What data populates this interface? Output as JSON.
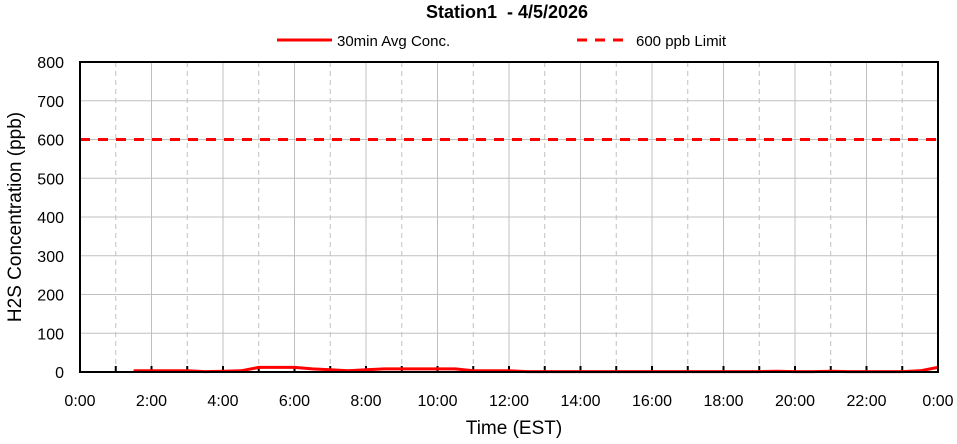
{
  "chart_data": {
    "type": "line",
    "title": "Station1  - 4/5/2026",
    "xlabel": "Time (EST)",
    "ylabel": "H2S Concentration (ppb)",
    "xlim_hours": [
      0,
      24
    ],
    "ylim": [
      0,
      800
    ],
    "y_ticks": [
      "0",
      "100",
      "200",
      "300",
      "400",
      "500",
      "600",
      "700",
      "800"
    ],
    "x_ticks": [
      "0:00",
      "2:00",
      "4:00",
      "6:00",
      "8:00",
      "10:00",
      "12:00",
      "14:00",
      "16:00",
      "18:00",
      "20:00",
      "22:00",
      "0:00"
    ],
    "grid": true,
    "legend_position": "top",
    "series": [
      {
        "name": "30min Avg Conc.",
        "color": "#ff0000",
        "style": "solid",
        "x": [
          "1:30",
          "2:00",
          "2:30",
          "3:00",
          "3:30",
          "4:00",
          "4:30",
          "5:00",
          "5:30",
          "6:00",
          "6:30",
          "7:00",
          "7:30",
          "8:00",
          "8:30",
          "9:00",
          "9:30",
          "10:00",
          "10:30",
          "11:00",
          "11:30",
          "12:00",
          "12:30",
          "13:00",
          "13:30",
          "14:00",
          "14:30",
          "15:00",
          "15:30",
          "16:00",
          "16:30",
          "17:00",
          "17:30",
          "18:00",
          "18:30",
          "19:00",
          "19:30",
          "20:00",
          "20:30",
          "21:00",
          "21:30",
          "22:00",
          "22:30",
          "23:00",
          "23:30",
          "24:00"
        ],
        "values": [
          3,
          3,
          3,
          3,
          1,
          2,
          3,
          12,
          12,
          12,
          8,
          6,
          3,
          6,
          8,
          8,
          8,
          8,
          8,
          3,
          3,
          3,
          1,
          1,
          1,
          1,
          1,
          1,
          1,
          1,
          1,
          1,
          1,
          1,
          1,
          1,
          2,
          1,
          1,
          2,
          1,
          1,
          1,
          1,
          3,
          12
        ]
      },
      {
        "name": "600 ppb Limit",
        "color": "#ff0000",
        "style": "dashed",
        "x": [
          "0:00",
          "24:00"
        ],
        "values": [
          600,
          600
        ]
      }
    ]
  }
}
